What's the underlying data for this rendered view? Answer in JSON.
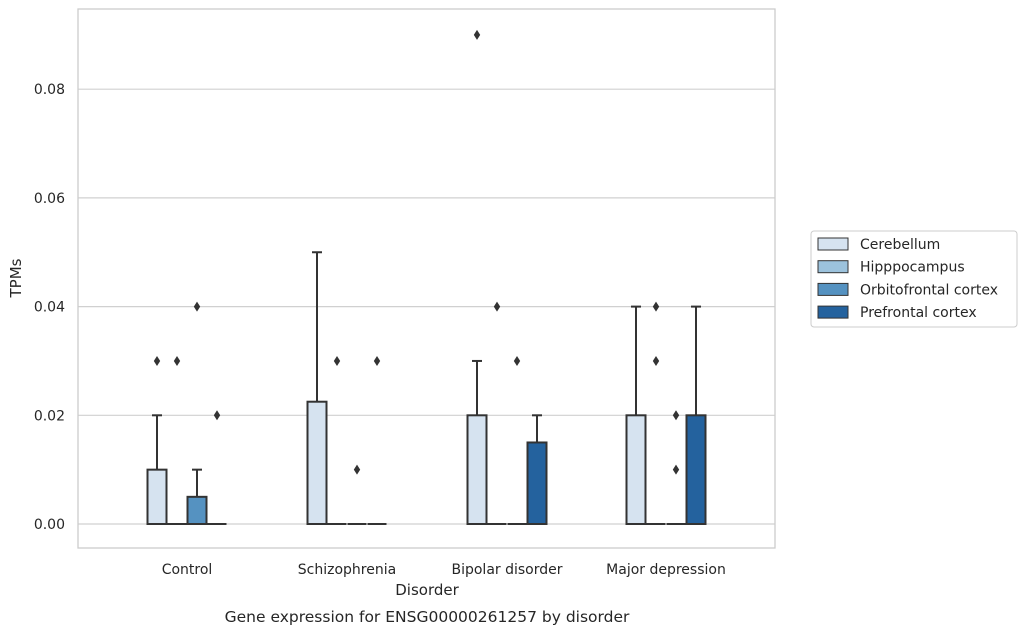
{
  "chart_data": {
    "type": "box",
    "title": "",
    "caption": "Gene expression for ENSG00000261257 by disorder",
    "xlabel": "Disorder",
    "ylabel": "TPMs",
    "ylim": [
      -0.0045,
      0.0945
    ],
    "yticks": [
      "0.00",
      "0.02",
      "0.04",
      "0.06",
      "0.08"
    ],
    "ytick_values": [
      0,
      0.02,
      0.04,
      0.06,
      0.08
    ],
    "grid": "horizontal",
    "legend_position": "right",
    "categories": [
      "Control",
      "Schizophrenia",
      "Bipolar disorder",
      "Major depression"
    ],
    "series": [
      {
        "name": "Cerebellum",
        "color": "#d6e3f0",
        "boxes": [
          {
            "min": 0,
            "q1": 0,
            "median": 0,
            "q3": 0.01,
            "max": 0.02,
            "outliers": [
              0.03
            ]
          },
          {
            "min": 0,
            "q1": 0,
            "median": 0,
            "q3": 0.0225,
            "max": 0.05,
            "outliers": []
          },
          {
            "min": 0,
            "q1": 0,
            "median": 0,
            "q3": 0.02,
            "max": 0.03,
            "outliers": [
              0.09
            ]
          },
          {
            "min": 0,
            "q1": 0,
            "median": 0,
            "q3": 0.02,
            "max": 0.04,
            "outliers": []
          }
        ]
      },
      {
        "name": "Hipppocampus",
        "color": "#9cc2dc",
        "boxes": [
          {
            "min": 0,
            "q1": 0,
            "median": 0,
            "q3": 0,
            "max": 0,
            "outliers": [
              0.03
            ]
          },
          {
            "min": 0,
            "q1": 0,
            "median": 0,
            "q3": 0,
            "max": 0,
            "outliers": [
              0.03
            ]
          },
          {
            "min": 0,
            "q1": 0,
            "median": 0,
            "q3": 0,
            "max": 0,
            "outliers": [
              0.04
            ]
          },
          {
            "min": 0,
            "q1": 0,
            "median": 0,
            "q3": 0,
            "max": 0,
            "outliers": [
              0.04,
              0.03
            ]
          }
        ]
      },
      {
        "name": "Orbitofrontal cortex",
        "color": "#5592c1",
        "boxes": [
          {
            "min": 0,
            "q1": 0,
            "median": 0,
            "q3": 0.005,
            "max": 0.01,
            "outliers": [
              0.04
            ]
          },
          {
            "min": 0,
            "q1": 0,
            "median": 0,
            "q3": 0,
            "max": 0,
            "outliers": [
              0.01
            ]
          },
          {
            "min": 0,
            "q1": 0,
            "median": 0,
            "q3": 0,
            "max": 0,
            "outliers": [
              0.03
            ]
          },
          {
            "min": 0,
            "q1": 0,
            "median": 0,
            "q3": 0,
            "max": 0,
            "outliers": [
              0.02,
              0.01
            ]
          }
        ]
      },
      {
        "name": "Prefrontal cortex",
        "color": "#24629e",
        "boxes": [
          {
            "min": 0,
            "q1": 0,
            "median": 0,
            "q3": 0,
            "max": 0,
            "outliers": [
              0.02
            ]
          },
          {
            "min": 0,
            "q1": 0,
            "median": 0,
            "q3": 0,
            "max": 0,
            "outliers": [
              0.03
            ]
          },
          {
            "min": 0,
            "q1": 0,
            "median": 0,
            "q3": 0.015,
            "max": 0.02,
            "outliers": []
          },
          {
            "min": 0,
            "q1": 0,
            "median": 0,
            "q3": 0.02,
            "max": 0.04,
            "outliers": []
          }
        ]
      }
    ],
    "colors": {
      "frame": "#cccccc",
      "grid": "#d0d0d0",
      "line": "#333333",
      "text": "#262626"
    }
  }
}
